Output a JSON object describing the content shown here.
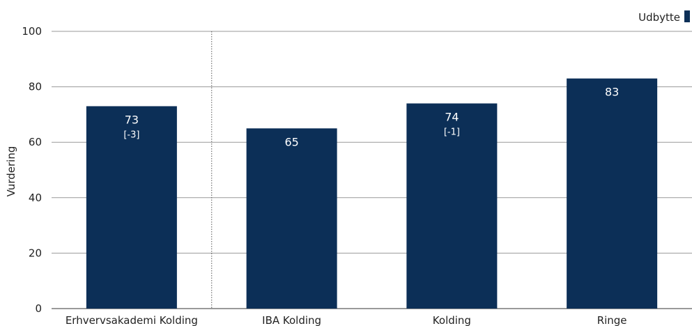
{
  "chart_data": {
    "type": "bar",
    "categories": [
      "Erhvervsakademi Kolding",
      "IBA Kolding",
      "Kolding",
      "Ringe"
    ],
    "series": [
      {
        "name": "Udbytte",
        "values": [
          73,
          65,
          74,
          83
        ]
      }
    ],
    "value_labels": [
      "73",
      "65",
      "74",
      "83"
    ],
    "change_labels": [
      "[-3]",
      "",
      "[-1]",
      ""
    ],
    "ylabel": "Vurdering",
    "xlabel": "",
    "ylim": [
      0,
      100
    ],
    "yticks": [
      0,
      20,
      40,
      60,
      80,
      100
    ],
    "grid": true,
    "legend_position": "top-right",
    "separator_after_category": 0,
    "colors": {
      "bar": "#0c2f57",
      "grid": "#999999",
      "axis": "#333333",
      "text": "#222222"
    }
  }
}
